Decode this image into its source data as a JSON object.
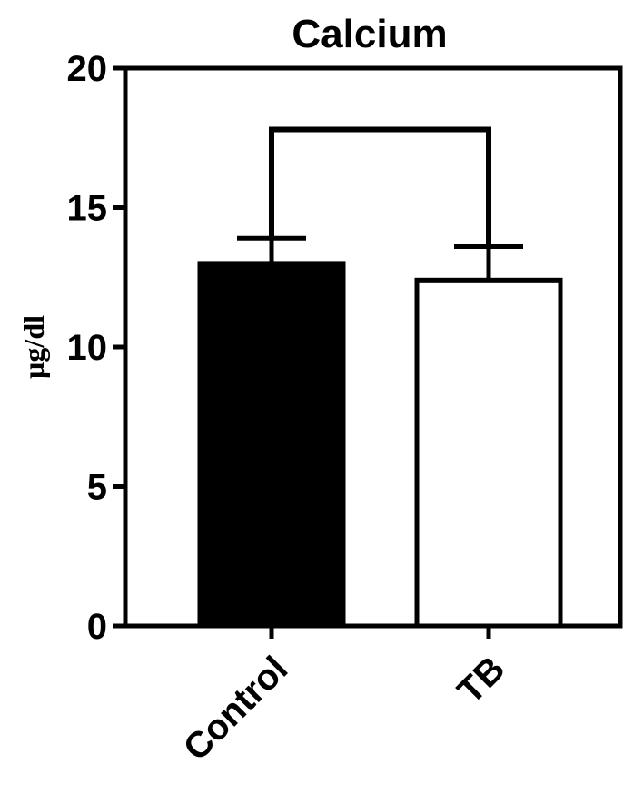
{
  "chart_data": {
    "type": "bar",
    "title": "Calcium",
    "xlabel": "",
    "ylabel": "µg/dl",
    "ylim": [
      0,
      20
    ],
    "yticks": [
      0,
      5,
      10,
      15,
      20
    ],
    "categories": [
      "Control",
      "TB"
    ],
    "values": [
      13.0,
      12.4
    ],
    "errors": [
      0.9,
      1.2
    ],
    "bar_fill": [
      "#000000",
      "#ffffff"
    ],
    "bar_stroke": "#000000",
    "grid": false,
    "legend": "none",
    "significance_bracket": {
      "from": "Control",
      "to": "TB",
      "y": 17.8
    }
  }
}
